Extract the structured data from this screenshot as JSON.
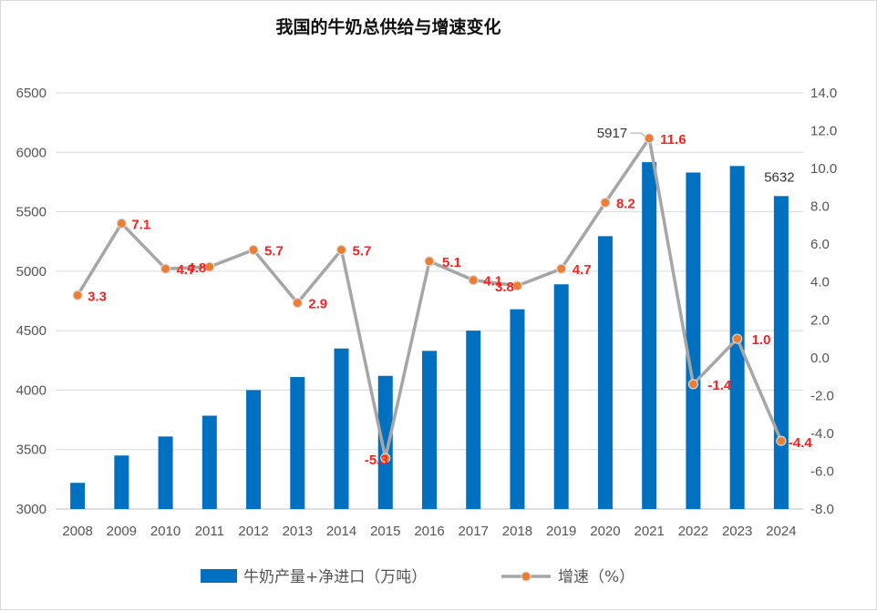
{
  "chart_data": {
    "type": "bar+line",
    "title": "我国的牛奶总供给与增速变化",
    "categories": [
      "2008",
      "2009",
      "2010",
      "2011",
      "2012",
      "2013",
      "2014",
      "2015",
      "2016",
      "2017",
      "2018",
      "2019",
      "2020",
      "2021",
      "2022",
      "2023",
      "2024"
    ],
    "series": [
      {
        "name": "牛奶产量+净进口（万吨）",
        "type": "bar",
        "axis": "left",
        "color": "#0070c0",
        "values": [
          3220,
          3450,
          3610,
          3785,
          4000,
          4110,
          4350,
          4120,
          4330,
          4500,
          4680,
          4890,
          5295,
          5917,
          5830,
          5885,
          5632
        ],
        "data_labels": {
          "2021": "5917",
          "2024": "5632"
        }
      },
      {
        "name": "增速（%）",
        "type": "line",
        "axis": "right",
        "color": "#a6a6a6",
        "marker_color": "#ed7d31",
        "values": [
          3.3,
          7.1,
          4.7,
          4.8,
          5.7,
          2.9,
          5.7,
          -5.3,
          5.1,
          4.1,
          3.8,
          4.7,
          8.2,
          11.6,
          -1.4,
          1.0,
          -4.4
        ],
        "data_labels": [
          "3.3",
          "7.1",
          "4.7",
          "4.8",
          "5.7",
          "2.9",
          "5.7",
          "-5.3",
          "5.1",
          "4.1",
          "3.8",
          "4.7",
          "8.2",
          "11.6",
          "-1.4",
          "1.0",
          "-4.4"
        ]
      }
    ],
    "y_left": {
      "min": 3000,
      "max": 6500,
      "step": 500,
      "ticks": [
        "3000",
        "3500",
        "4000",
        "4500",
        "5000",
        "5500",
        "6000",
        "6500"
      ]
    },
    "y_right": {
      "min": -8,
      "max": 14,
      "step": 2,
      "ticks": [
        "-8.0",
        "-6.0",
        "-4.0",
        "-2.0",
        "0.0",
        "2.0",
        "4.0",
        "6.0",
        "8.0",
        "10.0",
        "12.0",
        "14.0"
      ]
    },
    "grid": true,
    "legend_position": "bottom",
    "legend": [
      {
        "label": "牛奶产量+净进口（万吨）",
        "icon": "bar-swatch"
      },
      {
        "label": "增速（%）",
        "icon": "line-marker"
      }
    ]
  }
}
